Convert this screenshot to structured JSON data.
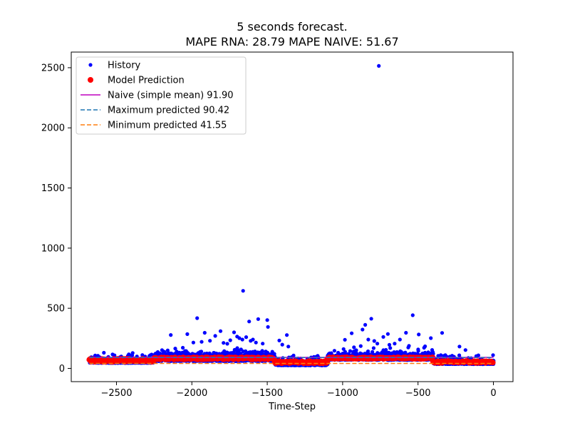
{
  "chart_data": {
    "type": "scatter",
    "title_line1": "5 seconds forecast.",
    "title_line2": "MAPE RNA: 28.79 MAPE NAIVE: 51.67",
    "xlabel": "Time-Step",
    "ylabel": "",
    "xlim": [
      -2800,
      130
    ],
    "ylim": [
      -110,
      2630
    ],
    "x_ticks": [
      -2500,
      -2000,
      -1500,
      -1000,
      -500,
      0
    ],
    "x_tick_labels": [
      "−2500",
      "−2000",
      "−1500",
      "−1000",
      "−500",
      "0"
    ],
    "y_ticks": [
      0,
      500,
      1000,
      1500,
      2000,
      2500
    ],
    "y_tick_labels": [
      "0",
      "500",
      "1000",
      "1500",
      "2000",
      "2500"
    ],
    "grid": false,
    "legend_position": "top-left",
    "legend": [
      {
        "label": "History",
        "marker": "dot",
        "color": "#0000ff"
      },
      {
        "label": "Model Prediction",
        "marker": "big-dot",
        "color": "#ff0000"
      },
      {
        "label": "Naive (simple mean) 91.90",
        "marker": "line",
        "color": "#bf00bf"
      },
      {
        "label": "Maximum predicted 90.42",
        "marker": "dashed",
        "color": "#1f77b4"
      },
      {
        "label": "Minimum predicted 41.55",
        "marker": "dashed",
        "color": "#ff7f0e"
      }
    ],
    "series": [
      {
        "name": "History",
        "color": "#0000ff",
        "x_range": [
          -2680,
          0
        ],
        "baseline_segments": [
          {
            "x": [
              -2680,
              -2250
            ],
            "y": [
              45,
              65
            ]
          },
          {
            "x": [
              -2250,
              -1450
            ],
            "y": [
              60,
              110
            ]
          },
          {
            "x": [
              -1450,
              -1100
            ],
            "y": [
              25,
              50
            ]
          },
          {
            "x": [
              -1100,
              -400
            ],
            "y": [
              70,
              110
            ]
          },
          {
            "x": [
              -400,
              0
            ],
            "y": [
              35,
              60
            ]
          }
        ],
        "outliers": [
          [
            -760,
            2515
          ],
          [
            -1660,
            645
          ],
          [
            -1965,
            418
          ],
          [
            -1560,
            410
          ],
          [
            -1500,
            402
          ],
          [
            -1620,
            390
          ],
          [
            -535,
            442
          ],
          [
            -810,
            413
          ],
          [
            -850,
            362
          ],
          [
            -868,
            323
          ],
          [
            -940,
            292
          ],
          [
            -985,
            238
          ],
          [
            -1495,
            345
          ],
          [
            -1810,
            310
          ],
          [
            -1720,
            300
          ],
          [
            -2140,
            278
          ],
          [
            -1845,
            270
          ],
          [
            -2030,
            285
          ],
          [
            -1915,
            296
          ],
          [
            -1370,
            277
          ],
          [
            -700,
            286
          ],
          [
            -730,
            262
          ],
          [
            -580,
            296
          ],
          [
            -495,
            282
          ],
          [
            -340,
            295
          ],
          [
            -415,
            252
          ],
          [
            -225,
            182
          ],
          [
            -185,
            153
          ],
          [
            -620,
            240
          ],
          [
            -790,
            228
          ],
          [
            -1640,
            260
          ],
          [
            -1700,
            265
          ],
          [
            -1595,
            240
          ],
          [
            -1745,
            234
          ],
          [
            -1880,
            230
          ],
          [
            -1935,
            221
          ],
          [
            -1990,
            215
          ],
          [
            -1530,
            206
          ],
          [
            -1420,
            232
          ],
          [
            -1400,
            198
          ],
          [
            -1360,
            182
          ],
          [
            -690,
            196
          ],
          [
            -655,
            206
          ],
          [
            -460,
            172
          ],
          [
            -880,
            186
          ],
          [
            -925,
            175
          ],
          [
            -2060,
            172
          ],
          [
            -2110,
            165
          ],
          [
            -2160,
            150
          ],
          [
            -1665,
            240
          ],
          [
            -1685,
            252
          ],
          [
            -1610,
            229
          ],
          [
            -1575,
            215
          ],
          [
            -1765,
            205
          ],
          [
            -1790,
            212
          ],
          [
            -830,
            240
          ],
          [
            -770,
            206
          ],
          [
            -560,
            188
          ]
        ]
      },
      {
        "name": "Model Prediction",
        "color": "#ff0000",
        "segments": [
          {
            "x": [
              -2680,
              -2250
            ],
            "y": [
              55,
              80
            ]
          },
          {
            "x": [
              -2250,
              -1450
            ],
            "y": [
              75,
              92
            ]
          },
          {
            "x": [
              -1450,
              -1100
            ],
            "y": [
              42,
              60
            ]
          },
          {
            "x": [
              -1100,
              -400
            ],
            "y": [
              80,
              92
            ]
          },
          {
            "x": [
              -400,
              0
            ],
            "y": [
              45,
              62
            ]
          }
        ]
      },
      {
        "name": "Naive (simple mean) 91.90",
        "color": "#bf00bf",
        "y": 91.9,
        "style": "solid"
      },
      {
        "name": "Maximum predicted 90.42",
        "color": "#1f77b4",
        "y": 90.42,
        "style": "dashed"
      },
      {
        "name": "Minimum predicted 41.55",
        "color": "#ff7f0e",
        "y": 41.55,
        "style": "dashed"
      }
    ]
  }
}
